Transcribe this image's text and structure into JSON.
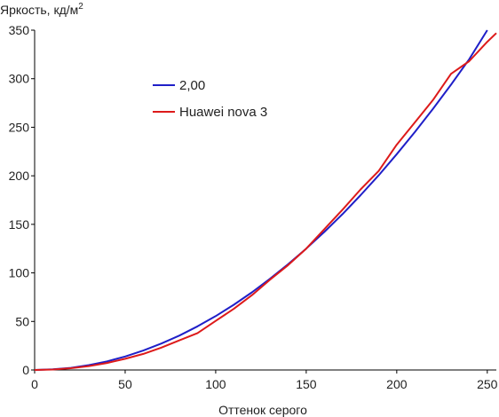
{
  "chart_data": {
    "type": "line",
    "title": "",
    "ylabel": "Яркость, кд/м",
    "ylabel_superscript": "2",
    "xlabel": "Оттенок серого",
    "xlim": [
      0,
      255
    ],
    "ylim": [
      0,
      350
    ],
    "xticks": [
      0,
      50,
      100,
      150,
      200,
      250
    ],
    "yticks": [
      0,
      50,
      100,
      150,
      200,
      250,
      300,
      350
    ],
    "grid": false,
    "legend_position": "upper-left-inside",
    "series": [
      {
        "name": "2,00",
        "color": "#1f1fc8",
        "x": [
          0,
          10,
          20,
          30,
          40,
          50,
          60,
          70,
          80,
          90,
          100,
          110,
          120,
          130,
          140,
          150,
          160,
          170,
          180,
          190,
          200,
          210,
          220,
          230,
          240,
          250
        ],
        "y": [
          0,
          0.6,
          2.2,
          5.0,
          8.9,
          13.9,
          20.0,
          27.2,
          35.5,
          45.0,
          55.5,
          67.2,
          80.0,
          93.9,
          108.9,
          125.0,
          142.2,
          160.5,
          180.0,
          200.5,
          222.2,
          245.0,
          268.9,
          293.9,
          320.0,
          350.0
        ]
      },
      {
        "name": "Huawei nova 3",
        "color": "#dd1a1a",
        "x": [
          0,
          10,
          20,
          30,
          40,
          50,
          60,
          70,
          80,
          90,
          100,
          110,
          120,
          130,
          140,
          150,
          160,
          170,
          180,
          190,
          200,
          210,
          220,
          230,
          240,
          250,
          255
        ],
        "y": [
          0,
          0.5,
          1.8,
          4.0,
          7.2,
          11.5,
          16.5,
          23.0,
          30.5,
          38.0,
          50.5,
          63.0,
          77.0,
          93.0,
          108.0,
          125.0,
          145.0,
          165.0,
          186.0,
          205.0,
          232.0,
          255.0,
          278.0,
          305.0,
          318.0,
          338.0,
          347.0
        ]
      }
    ]
  }
}
